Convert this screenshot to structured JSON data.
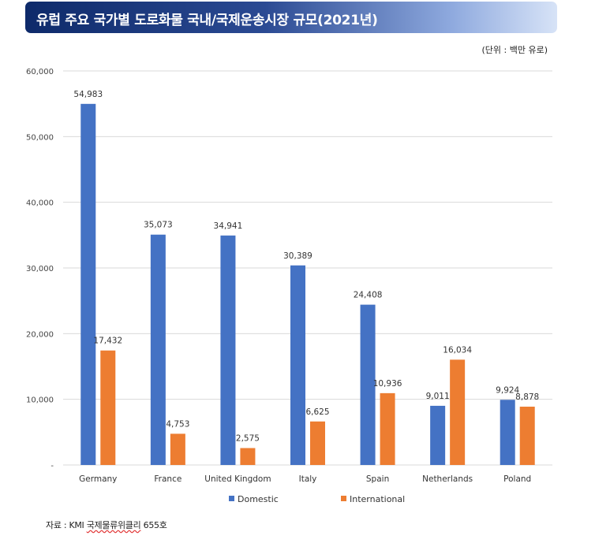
{
  "header": {
    "title": "유럽 주요 국가별 도로화물 국내/국제운송시장 규모(2021년)"
  },
  "unit_note": "(단위 : 백만 유로)",
  "source": {
    "prefix": "자료 : KMI ",
    "org": "국제물류위클리",
    "suffix": " 655호"
  },
  "colors": {
    "domestic": "#4472c4",
    "international": "#ed7d31",
    "grid": "#d9d9d9",
    "header_dark": "#0e2a6a"
  },
  "chart_data": {
    "type": "bar",
    "categories": [
      "Germany",
      "France",
      "United Kingdom",
      "Italy",
      "Spain",
      "Netherlands",
      "Poland"
    ],
    "series": [
      {
        "name": "Domestic",
        "values": [
          54983,
          35073,
          34941,
          30389,
          24408,
          9011,
          9924
        ],
        "labels": [
          "54,983",
          "35,073",
          "34,941",
          "30,389",
          "24,408",
          "9,011",
          "9,924"
        ]
      },
      {
        "name": "International",
        "values": [
          17432,
          4753,
          2575,
          6625,
          10936,
          16034,
          8878
        ],
        "labels": [
          "17,432",
          "4,753",
          "2,575",
          "6,625",
          "10,936",
          "16,034",
          "8,878"
        ]
      }
    ],
    "ylim": [
      0,
      60000
    ],
    "yticks": [
      0,
      10000,
      20000,
      30000,
      40000,
      50000,
      60000
    ],
    "ytick_labels": [
      "-",
      "10,000",
      "20,000",
      "30,000",
      "40,000",
      "50,000",
      "60,000"
    ],
    "grid": true,
    "legend_position": "bottom"
  }
}
